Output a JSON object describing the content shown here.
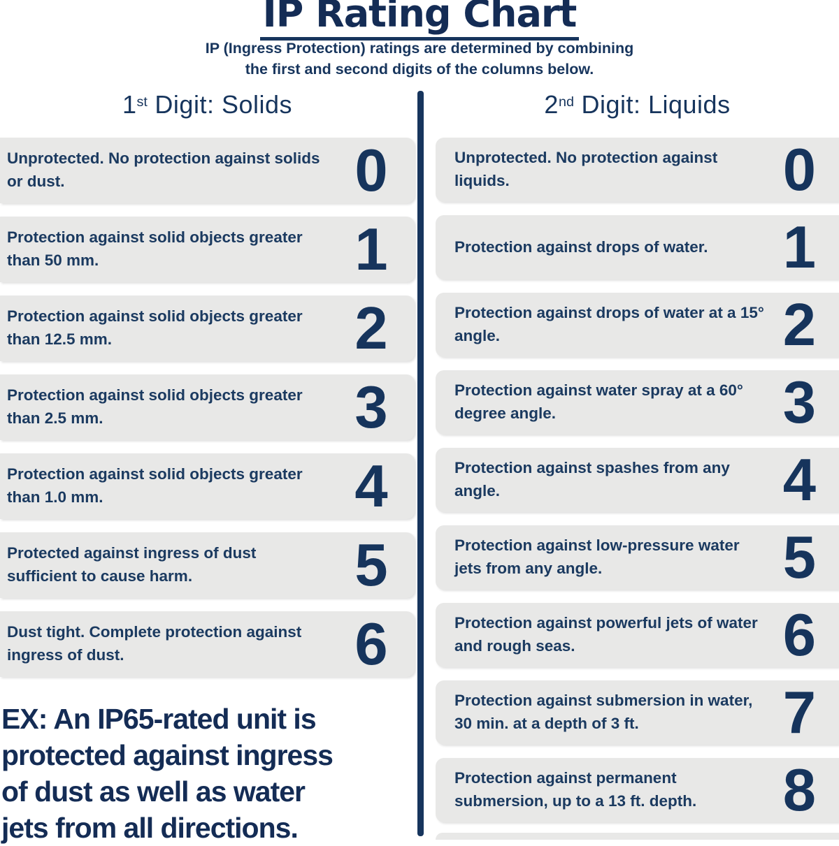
{
  "page": {
    "title": "IP Rating Chart",
    "subtitle_line1": "IP (Ingress Protection) ratings are determined by combining",
    "subtitle_line2": "the first and second digits of the columns below.",
    "colors": {
      "navy": "#17355d",
      "box_background": "#e8e8e7",
      "page_background": "#ffffff"
    }
  },
  "columns": [
    {
      "id": "solids",
      "heading_number": "1",
      "heading_sup": "st",
      "heading_rest": " Digit: Solids",
      "rows": [
        {
          "digit": "0",
          "text": "Unprotected. No protection against solids or dust."
        },
        {
          "digit": "1",
          "text": "Protection against solid objects greater than 50 mm."
        },
        {
          "digit": "2",
          "text": "Protection against solid objects greater than 12.5 mm."
        },
        {
          "digit": "3",
          "text": "Protection against solid objects greater than 2.5 mm."
        },
        {
          "digit": "4",
          "text": "Protection against solid objects greater than 1.0 mm."
        },
        {
          "digit": "5",
          "text": "Protected against ingress of dust sufficient to cause harm."
        },
        {
          "digit": "6",
          "text": "Dust tight. Complete protection against ingress of dust."
        }
      ]
    },
    {
      "id": "liquids",
      "heading_number": "2",
      "heading_sup": "nd",
      "heading_rest": " Digit: Liquids",
      "rows": [
        {
          "digit": "0",
          "text": "Unprotected. No protection against liquids."
        },
        {
          "digit": "1",
          "text": "Protection against drops of water."
        },
        {
          "digit": "2",
          "text": "Protection against drops of water at a 15° angle."
        },
        {
          "digit": "3",
          "text": "Protection against water spray at a 60° degree angle."
        },
        {
          "digit": "4",
          "text": "Protection against spashes from any angle."
        },
        {
          "digit": "5",
          "text": "Protection against low-pressure water jets from any angle."
        },
        {
          "digit": "6",
          "text": "Protection against powerful jets of water and rough seas."
        },
        {
          "digit": "7",
          "text": "Protection against submersion in water, 30 min. at a depth of 3 ft."
        },
        {
          "digit": "8",
          "text": "Protection against permanent submersion, up to a 13 ft. depth."
        }
      ]
    }
  ],
  "example": {
    "full_text": "EX: An IP65-rated unit is protected against ingress of dust as well as water jets from all directions.",
    "lines": [
      "EX: An IP65-rated unit is",
      "protected against ingress",
      "of dust as well as water",
      "jets from all directions."
    ]
  }
}
